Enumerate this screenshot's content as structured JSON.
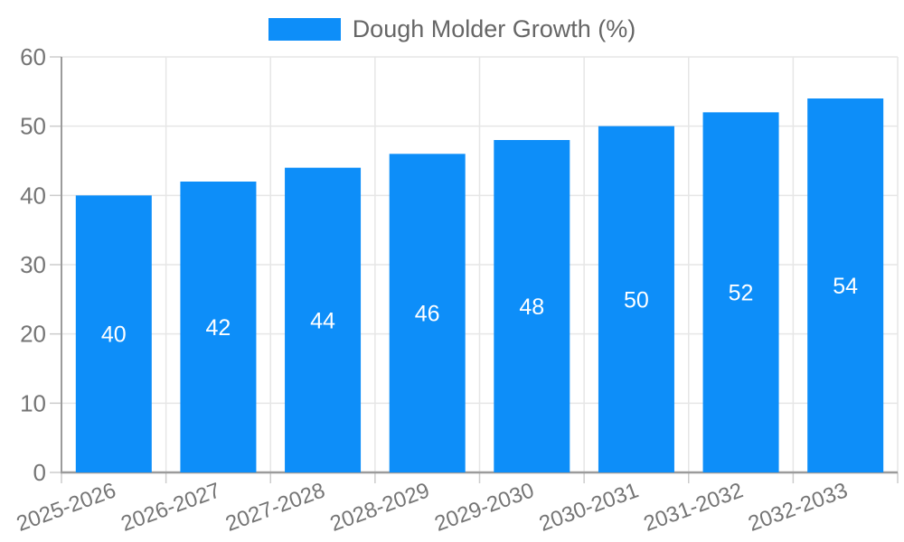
{
  "chart_data": {
    "type": "bar",
    "title": "",
    "xlabel": "",
    "ylabel": "",
    "legend_label": "Dough Molder Growth (%)",
    "legend_position": "top",
    "categories": [
      "2025-2026",
      "2026-2027",
      "2027-2028",
      "2028-2029",
      "2029-2030",
      "2030-2031",
      "2031-2032",
      "2032-2033"
    ],
    "series": [
      {
        "name": "Dough Molder Growth (%)",
        "values": [
          40,
          42,
          44,
          46,
          48,
          50,
          52,
          54
        ]
      }
    ],
    "value_labels_shown": true,
    "ylim": [
      0,
      60
    ],
    "yticks": [
      0,
      10,
      20,
      30,
      40,
      50,
      60
    ],
    "grid": true,
    "x_label_rotation_deg": -20,
    "colors": {
      "bar": "#0d8ef9",
      "value_label": "#ffffff",
      "grid": "#e6e6e6",
      "tick": "#cccccc",
      "axis": "#9b9b9b",
      "tick_label": "#757575",
      "legend_text": "#666666",
      "background": "#ffffff"
    }
  }
}
